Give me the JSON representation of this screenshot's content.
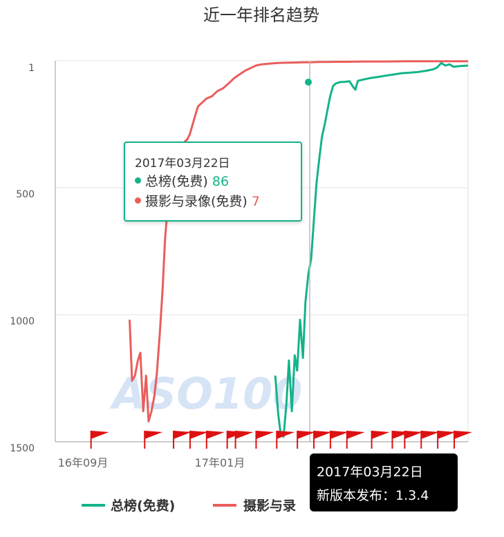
{
  "chart_data": {
    "type": "line",
    "title": "近一年排名趋势",
    "y_axis": {
      "reversed": true,
      "ylim": [
        1,
        1500
      ],
      "ticks": [
        "1",
        "500",
        "1000",
        "1500"
      ]
    },
    "x_axis": {
      "tick_labels": [
        "16年09月",
        "17年01月"
      ]
    },
    "grid": true,
    "legend_position": "bottom",
    "colors": {
      "green": "#14b38a",
      "red": "#e95d5b",
      "grid": "#e6e6e6",
      "axis": "#bbbbbb"
    },
    "series": [
      {
        "name": "总榜(免费)",
        "color": "#14b38a",
        "points": [
          [
            0.533,
            1240
          ],
          [
            0.54,
            1390
          ],
          [
            0.546,
            1470
          ],
          [
            0.553,
            1480
          ],
          [
            0.56,
            1350
          ],
          [
            0.566,
            1180
          ],
          [
            0.573,
            1380
          ],
          [
            0.58,
            1160
          ],
          [
            0.586,
            1220
          ],
          [
            0.593,
            1020
          ],
          [
            0.6,
            1170
          ],
          [
            0.606,
            950
          ],
          [
            0.613,
            840
          ],
          [
            0.62,
            780
          ],
          [
            0.626,
            640
          ],
          [
            0.633,
            480
          ],
          [
            0.64,
            380
          ],
          [
            0.646,
            300
          ],
          [
            0.653,
            250
          ],
          [
            0.66,
            190
          ],
          [
            0.666,
            140
          ],
          [
            0.673,
            100
          ],
          [
            0.68,
            90
          ],
          [
            0.69,
            85
          ],
          [
            0.7,
            84
          ],
          [
            0.713,
            82
          ],
          [
            0.72,
            100
          ],
          [
            0.727,
            115
          ],
          [
            0.733,
            80
          ],
          [
            0.746,
            75
          ],
          [
            0.76,
            70
          ],
          [
            0.78,
            65
          ],
          [
            0.8,
            60
          ],
          [
            0.82,
            55
          ],
          [
            0.84,
            50
          ],
          [
            0.86,
            48
          ],
          [
            0.88,
            45
          ],
          [
            0.9,
            40
          ],
          [
            0.915,
            35
          ],
          [
            0.925,
            28
          ],
          [
            0.935,
            10
          ],
          [
            0.945,
            20
          ],
          [
            0.955,
            15
          ],
          [
            0.965,
            25
          ],
          [
            0.98,
            22
          ],
          [
            1.0,
            20
          ]
        ]
      },
      {
        "name": "摄影与录像(免费)",
        "color": "#e95d5b",
        "points": [
          [
            0.18,
            1020
          ],
          [
            0.186,
            1260
          ],
          [
            0.193,
            1240
          ],
          [
            0.2,
            1180
          ],
          [
            0.206,
            1150
          ],
          [
            0.213,
            1380
          ],
          [
            0.22,
            1240
          ],
          [
            0.226,
            1420
          ],
          [
            0.233,
            1380
          ],
          [
            0.24,
            1320
          ],
          [
            0.246,
            1230
          ],
          [
            0.253,
            1080
          ],
          [
            0.26,
            900
          ],
          [
            0.266,
            700
          ],
          [
            0.273,
            560
          ],
          [
            0.28,
            620
          ],
          [
            0.286,
            480
          ],
          [
            0.293,
            430
          ],
          [
            0.3,
            380
          ],
          [
            0.306,
            350
          ],
          [
            0.313,
            320
          ],
          [
            0.32,
            310
          ],
          [
            0.326,
            290
          ],
          [
            0.333,
            250
          ],
          [
            0.34,
            210
          ],
          [
            0.346,
            180
          ],
          [
            0.353,
            170
          ],
          [
            0.366,
            150
          ],
          [
            0.38,
            140
          ],
          [
            0.393,
            120
          ],
          [
            0.406,
            110
          ],
          [
            0.42,
            90
          ],
          [
            0.433,
            70
          ],
          [
            0.446,
            55
          ],
          [
            0.46,
            40
          ],
          [
            0.473,
            30
          ],
          [
            0.486,
            20
          ],
          [
            0.5,
            15
          ],
          [
            0.52,
            12
          ],
          [
            0.54,
            10
          ],
          [
            0.56,
            9
          ],
          [
            0.58,
            8
          ],
          [
            0.6,
            7
          ],
          [
            0.62,
            7
          ],
          [
            0.64,
            6
          ],
          [
            0.66,
            6
          ],
          [
            0.68,
            5
          ],
          [
            0.7,
            5
          ],
          [
            0.75,
            4
          ],
          [
            0.8,
            4
          ],
          [
            0.85,
            3
          ],
          [
            0.9,
            3
          ],
          [
            0.95,
            3
          ],
          [
            1.0,
            3
          ]
        ]
      }
    ],
    "release_flags": [
      0.12,
      0.25,
      0.32,
      0.36,
      0.4,
      0.45,
      0.47,
      0.52,
      0.57,
      0.62,
      0.66,
      0.7,
      0.74,
      0.8,
      0.85,
      0.88,
      0.92,
      0.96,
      1.0
    ]
  },
  "tooltip": {
    "date": "2017年03月22日",
    "rows": [
      {
        "label": "总榜(免费)",
        "value": "86"
      },
      {
        "label": "摄影与录像(免费)",
        "value": "7"
      }
    ]
  },
  "release_tooltip": {
    "date": "2017年03月22日",
    "text": "新版本发布：1.3.4"
  },
  "legend": [
    {
      "label": "总榜(免费)"
    },
    {
      "label": "摄影与录"
    }
  ],
  "watermark": "ASO100"
}
